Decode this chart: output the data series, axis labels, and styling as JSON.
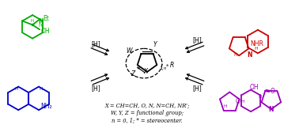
{
  "background_color": "#ffffff",
  "green_color": "#00aa00",
  "blue_color": "#0000cc",
  "red_color": "#cc0000",
  "purple_color": "#9900bb",
  "black_color": "#000000",
  "legend_text": [
    "X = CH=CH, O, N, N=CH, NR’;",
    "W, Y, Z = functional group;",
    "n = 0, 1; * = stereocenter."
  ],
  "figsize": [
    3.78,
    1.72
  ],
  "dpi": 100
}
